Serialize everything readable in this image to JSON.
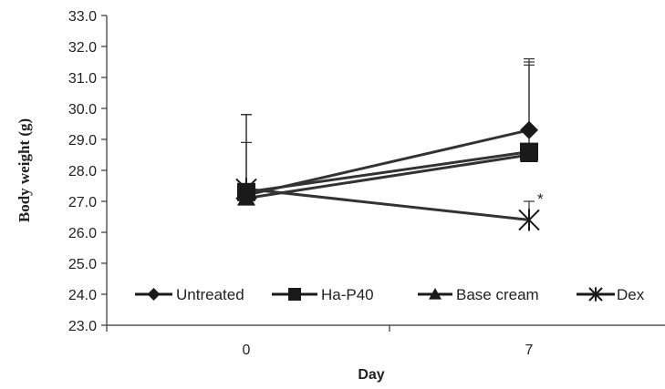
{
  "chart_data": {
    "type": "line",
    "ylabel": "Body weight (g)",
    "xlabel": "Day",
    "categories": [
      "0",
      "7"
    ],
    "ylim": [
      23.0,
      33.0
    ],
    "yticks": [
      "23.0",
      "24.0",
      "25.0",
      "26.0",
      "27.0",
      "28.0",
      "29.0",
      "30.0",
      "31.0",
      "32.0",
      "33.0"
    ],
    "legend_position": "bottom-inside",
    "grid": false,
    "annotation": "*",
    "series": [
      {
        "name": "Untreated",
        "marker": "diamond",
        "values": [
          27.2,
          29.3
        ],
        "err_upper": [
          29.8,
          31.6
        ]
      },
      {
        "name": "Ha-P40",
        "marker": "square",
        "values": [
          27.3,
          28.6
        ],
        "err_upper": [
          29.8,
          31.5
        ]
      },
      {
        "name": "Base cream",
        "marker": "triangle",
        "values": [
          27.1,
          28.5
        ],
        "err_upper": [
          28.9,
          31.4
        ]
      },
      {
        "name": "Dex",
        "marker": "asterisk",
        "values": [
          27.4,
          26.4
        ],
        "err_upper": [
          29.8,
          27.0
        ]
      }
    ]
  }
}
